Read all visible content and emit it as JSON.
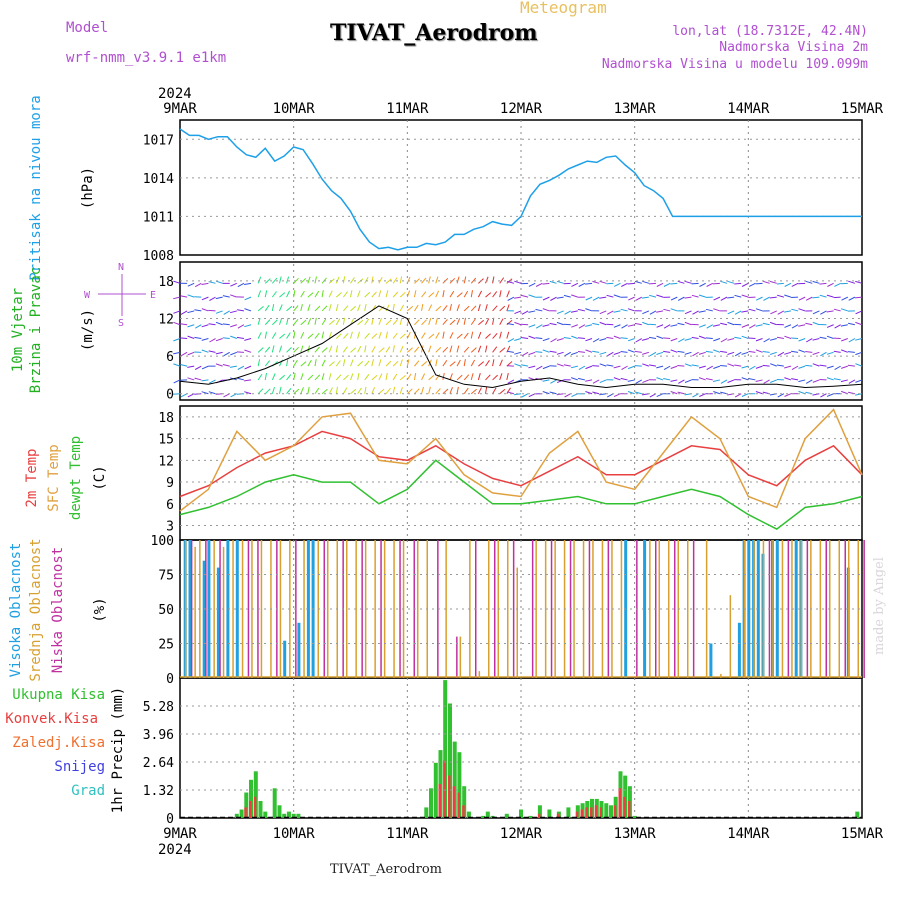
{
  "header": {
    "title": "TIVAT_Aerodrom",
    "meteogram_label": "Meteogram",
    "model_label": "Model",
    "model_name": "wrf-nmm_v3.9.1 e1km",
    "lonlat": "lon,lat (18.7312E, 42.4N)",
    "nadmorska_visina": "Nadmorska Visina 2m",
    "nadmorska_visina_model": "Nadmorska Visina u modelu 109.099m",
    "credit": "made by Angel",
    "footer": "TIVAT_Aerodrom"
  },
  "colors": {
    "pressure": "#1ea0e8",
    "temp2m": "#e84040",
    "sfc": "#e0a040",
    "dewpt": "#30c030",
    "high_cloud": "#20a0e0",
    "mid_cloud": "#d8a030",
    "low_cloud": "#c030a0",
    "ukupna": "#30c030",
    "konvek": "#e84040",
    "zaledj": "#f07030",
    "snijeg": "#4040e0",
    "grad": "#30c0c0",
    "wind_lbl_cyan": "#20b0e0",
    "wind_lbl_green": "#20b020"
  },
  "chart_data": [
    {
      "type": "line",
      "title": "Pritisak na nivou mora",
      "ylabel": "(hPa)",
      "ylim": [
        1008,
        1018.5
      ],
      "yticks": [
        1008,
        1011,
        1014,
        1017
      ],
      "x_labels": [
        "9MAR",
        "10MAR",
        "11MAR",
        "12MAR",
        "13MAR",
        "14MAR",
        "15MAR"
      ],
      "year_label": "2024",
      "grid": true,
      "series": [
        {
          "name": "Pritisak na nivou mora",
          "x": [
            0,
            2,
            4,
            6,
            8,
            10,
            12,
            14,
            16,
            18,
            20,
            22,
            24,
            26,
            28,
            30,
            32,
            34,
            36,
            38,
            40,
            42,
            44,
            46,
            48,
            50,
            52,
            54,
            56,
            58,
            60,
            62,
            64,
            66,
            68,
            70,
            72,
            74,
            76,
            78,
            80,
            82,
            84,
            86,
            88,
            90,
            92,
            94,
            96,
            98,
            100,
            102,
            104,
            106,
            108,
            110,
            112,
            114,
            116,
            118,
            120,
            122,
            124,
            126,
            128,
            130,
            132,
            134,
            136,
            138,
            140,
            142,
            144
          ],
          "values": [
            1017.8,
            1017.3,
            1017.3,
            1017.0,
            1017.2,
            1017.2,
            1016.4,
            1015.8,
            1015.6,
            1016.3,
            1015.3,
            1015.7,
            1016.4,
            1016.2,
            1015.1,
            1013.9,
            1013.0,
            1012.4,
            1011.4,
            1010.0,
            1009.0,
            1008.5,
            1008.6,
            1008.4,
            1008.6,
            1008.6,
            1008.9,
            1008.8,
            1009.0,
            1009.6,
            1009.6,
            1010.0,
            1010.2,
            1010.6,
            1010.4,
            1010.3,
            1011.0,
            1012.6,
            1013.5,
            1013.8,
            1014.2,
            1014.7,
            1015.0,
            1015.3,
            1015.2,
            1015.6,
            1015.7,
            1015.0,
            1014.4,
            1013.4,
            1013.0,
            1012.4,
            1011.0,
            1011.0,
            1011.0,
            1011.0,
            1011.0,
            1011.0,
            1011.0,
            1011.0,
            1011.0,
            1011.0,
            1011.0,
            1011.0,
            1011.0,
            1011.0,
            1011.0,
            1011.0,
            1011.0,
            1011.0,
            1011.0,
            1011.0,
            1011.0
          ]
        }
      ]
    },
    {
      "type": "line",
      "title": "10m Vjetar Brzina i Pravac",
      "ylabel": "(m/s)",
      "compass": {
        "n": "N",
        "s": "S",
        "e": "E",
        "w": "W"
      },
      "ylim": [
        -1,
        21
      ],
      "yticks": [
        0,
        6,
        12,
        18
      ],
      "series": [
        {
          "name": "10m Vjetar Brzina",
          "x": [
            0,
            6,
            12,
            18,
            24,
            30,
            36,
            42,
            48,
            54,
            60,
            66,
            72,
            78,
            84,
            90,
            96,
            102,
            108,
            114,
            120,
            126,
            132,
            138,
            144
          ],
          "values": [
            2,
            1.5,
            2.5,
            4,
            6,
            8,
            11,
            14,
            12,
            3,
            1.5,
            1,
            2,
            2.5,
            1.5,
            1,
            1.5,
            1.5,
            1,
            1,
            1.5,
            1.5,
            1,
            1.2,
            1.5
          ]
        }
      ]
    },
    {
      "type": "line",
      "ylabels": [
        "2m Temp",
        "SFC Temp",
        "dewpt Temp"
      ],
      "ylabel": "(C)",
      "ylim": [
        1,
        19.5
      ],
      "yticks": [
        3,
        6,
        9,
        12,
        15,
        18
      ],
      "series": [
        {
          "name": "2m Temp",
          "x": [
            0,
            6,
            12,
            18,
            24,
            30,
            36,
            42,
            48,
            54,
            60,
            66,
            72,
            78,
            84,
            90,
            96,
            102,
            108,
            114,
            120,
            126,
            132,
            138,
            144
          ],
          "values": [
            7,
            8.5,
            11,
            13,
            14,
            16,
            15,
            12.5,
            12,
            14,
            11.5,
            9.5,
            8.5,
            10.5,
            12.5,
            10,
            10,
            12,
            14,
            13.5,
            10,
            8.5,
            12,
            14,
            10
          ]
        },
        {
          "name": "SFC Temp",
          "x": [
            0,
            6,
            12,
            18,
            24,
            30,
            36,
            42,
            48,
            54,
            60,
            66,
            72,
            78,
            84,
            90,
            96,
            102,
            108,
            114,
            120,
            126,
            132,
            138,
            144
          ],
          "values": [
            5,
            8,
            16,
            12,
            14,
            18,
            18.5,
            12,
            11.5,
            15,
            10,
            7.5,
            7,
            13,
            16,
            9,
            8,
            13,
            18,
            15,
            7,
            5.5,
            15,
            19,
            10
          ]
        },
        {
          "name": "dewpt Temp",
          "x": [
            0,
            6,
            12,
            18,
            24,
            30,
            36,
            42,
            48,
            54,
            60,
            66,
            72,
            78,
            84,
            90,
            96,
            102,
            108,
            114,
            120,
            126,
            132,
            138,
            144
          ],
          "values": [
            4.5,
            5.5,
            7,
            9,
            10,
            9,
            9,
            6,
            8,
            12,
            9,
            6,
            6,
            6.5,
            7,
            6,
            6,
            7,
            8,
            7,
            4.5,
            2.5,
            5.5,
            6,
            7
          ]
        }
      ]
    },
    {
      "type": "bar",
      "ylabels": [
        "Visoka Oblacnost",
        "Srednja Oblacnost",
        "Niska Oblacnost"
      ],
      "ylabel": "(%)",
      "ylim": [
        0,
        100
      ],
      "yticks": [
        0,
        25,
        50,
        75,
        100
      ],
      "series": [
        {
          "name": "Visoka Oblacnost",
          "x": [
            1,
            2,
            5,
            6,
            8,
            10,
            12,
            22,
            25,
            27,
            28,
            94,
            98,
            112,
            118,
            119,
            120,
            121,
            122,
            123,
            125,
            126,
            130,
            131,
            141
          ],
          "values": [
            100,
            100,
            85,
            100,
            80,
            100,
            100,
            27,
            40,
            100,
            100,
            100,
            100,
            25,
            40,
            100,
            100,
            100,
            100,
            90,
            100,
            100,
            100,
            100,
            80
          ]
        },
        {
          "name": "Srednja Oblacnost",
          "x": [
            1,
            3,
            4,
            7,
            9,
            11,
            13,
            15,
            17,
            19,
            21,
            23,
            26,
            29,
            31,
            33,
            35,
            37,
            39,
            41,
            43,
            45,
            47,
            50,
            52,
            56,
            59,
            61,
            63,
            65,
            67,
            69,
            71,
            75,
            77,
            79,
            81,
            83,
            85,
            87,
            89,
            91,
            93,
            99,
            101,
            103,
            105,
            107,
            111,
            114,
            116,
            119,
            121,
            123,
            125,
            127,
            129,
            131,
            133,
            135,
            137,
            139,
            141,
            143
          ],
          "values": [
            100,
            95,
            100,
            100,
            95,
            100,
            100,
            100,
            100,
            100,
            100,
            100,
            100,
            100,
            100,
            100,
            100,
            100,
            100,
            100,
            100,
            100,
            100,
            100,
            100,
            100,
            30,
            100,
            5,
            100,
            100,
            100,
            80,
            100,
            100,
            100,
            100,
            100,
            100,
            100,
            100,
            100,
            100,
            100,
            100,
            100,
            100,
            100,
            100,
            3,
            60,
            100,
            100,
            100,
            100,
            100,
            100,
            100,
            100,
            100,
            100,
            100,
            100,
            100
          ]
        },
        {
          "name": "Niska Oblacnost",
          "x": [
            2,
            5,
            8,
            14,
            16,
            20,
            24,
            30,
            34,
            38,
            42,
            46,
            49,
            54,
            58,
            62,
            66,
            70,
            74,
            78,
            82,
            86,
            90,
            96,
            100,
            104,
            108,
            124,
            128,
            132,
            136,
            140,
            144
          ],
          "values": [
            100,
            100,
            100,
            100,
            100,
            100,
            100,
            100,
            100,
            100,
            100,
            100,
            100,
            100,
            30,
            100,
            100,
            100,
            100,
            100,
            100,
            100,
            100,
            100,
            100,
            100,
            100,
            100,
            100,
            100,
            100,
            100,
            100
          ]
        }
      ]
    },
    {
      "type": "bar",
      "ylabels": [
        "Ukupna Kisa",
        "Konvek.Kisa",
        "Zaledj.Kisa",
        "Snijeg",
        "Grad"
      ],
      "ylabel": "1hr Precip (mm)",
      "ylim": [
        0,
        6.6
      ],
      "yticks": [
        0,
        1.32,
        2.64,
        3.96,
        5.28
      ],
      "x_labels": [
        "9MAR",
        "10MAR",
        "11MAR",
        "12MAR",
        "13MAR",
        "14MAR",
        "15MAR"
      ],
      "year_label": "2024",
      "series": [
        {
          "name": "Ukupna Kisa",
          "x": [
            12,
            13,
            14,
            15,
            16,
            17,
            18,
            20,
            21,
            22,
            23,
            24,
            25,
            52,
            53,
            54,
            55,
            56,
            57,
            58,
            59,
            60,
            61,
            64,
            65,
            66,
            69,
            72,
            74,
            76,
            78,
            80,
            82,
            84,
            85,
            86,
            87,
            88,
            89,
            90,
            91,
            92,
            93,
            94,
            95,
            96,
            143
          ],
          "values": [
            0.2,
            0.4,
            1.2,
            1.8,
            2.2,
            0.8,
            0.3,
            1.4,
            0.6,
            0.2,
            0.3,
            0.2,
            0.2,
            0.5,
            1.4,
            2.6,
            3.2,
            6.5,
            5.4,
            3.6,
            3.1,
            1.5,
            0.3,
            0.1,
            0.3,
            0.1,
            0.2,
            0.4,
            0.1,
            0.6,
            0.4,
            0.3,
            0.5,
            0.6,
            0.7,
            0.8,
            0.9,
            0.9,
            0.8,
            0.7,
            0.6,
            1.0,
            2.2,
            2.0,
            1.5,
            0.1,
            0.3
          ]
        },
        {
          "name": "Konvek.Kisa",
          "x": [
            14,
            15,
            16,
            55,
            56,
            57,
            58,
            59,
            60,
            76,
            80,
            84,
            85,
            86,
            87,
            88,
            89,
            92,
            93,
            94,
            95
          ],
          "values": [
            0.5,
            0.8,
            1.0,
            1.6,
            2.7,
            2.0,
            1.5,
            1.2,
            0.6,
            0.2,
            0.2,
            0.3,
            0.4,
            0.5,
            0.5,
            0.6,
            0.5,
            0.6,
            1.4,
            1.0,
            0.8
          ]
        },
        {
          "name": "Zaledj.Kisa",
          "x": [],
          "values": []
        },
        {
          "name": "Snijeg",
          "x": [],
          "values": []
        },
        {
          "name": "Grad",
          "x": [],
          "values": []
        }
      ]
    }
  ]
}
